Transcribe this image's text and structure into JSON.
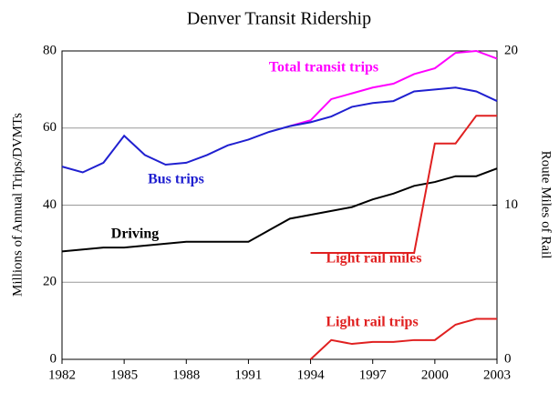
{
  "chart_data": {
    "type": "line",
    "title": "Denver Transit Ridership",
    "y_label": "Millions of Annual Trips/DVMTs",
    "y2_label": "Route Miles of Rail",
    "xlim": [
      1982,
      2003
    ],
    "xticks": [
      1982,
      1985,
      1988,
      1991,
      1994,
      1997,
      2000,
      2003
    ],
    "ylim": [
      0,
      80
    ],
    "yticks": [
      0,
      20,
      40,
      60,
      80
    ],
    "y2lim": [
      0,
      20
    ],
    "y2ticks": [
      0,
      10,
      20
    ],
    "grid": true,
    "series": [
      {
        "name": "Total transit trips",
        "color": "#ff00ff",
        "x": [
          1993,
          1994,
          1995,
          1996,
          1997,
          1998,
          1999,
          2000,
          2001,
          2002,
          2003
        ],
        "values": [
          60.5,
          62,
          67.5,
          69,
          70.5,
          71.5,
          74,
          75.5,
          79.5,
          80,
          78
        ]
      },
      {
        "name": "Bus trips",
        "color": "#2020d0",
        "x": [
          1982,
          1983,
          1984,
          1985,
          1986,
          1987,
          1988,
          1989,
          1990,
          1991,
          1992,
          1993,
          1994,
          1995,
          1996,
          1997,
          1998,
          1999,
          2000,
          2001,
          2002,
          2003
        ],
        "values": [
          50,
          48.5,
          51,
          58,
          53,
          50.5,
          51,
          53,
          55.5,
          57,
          59,
          60.5,
          61.5,
          63,
          65.5,
          66.5,
          67,
          69.5,
          70,
          70.5,
          69.5,
          67
        ]
      },
      {
        "name": "Driving",
        "color": "#000000",
        "x": [
          1982,
          1983,
          1984,
          1985,
          1986,
          1987,
          1988,
          1989,
          1990,
          1991,
          1992,
          1993,
          1994,
          1995,
          1996,
          1997,
          1998,
          1999,
          2000,
          2001,
          2002,
          2003
        ],
        "values": [
          28,
          28.5,
          29,
          29,
          29.5,
          30,
          30.5,
          30.5,
          30.5,
          30.5,
          33.5,
          36.5,
          37.5,
          38.5,
          39.5,
          41.5,
          43,
          45,
          46,
          47.5,
          47.5,
          49.5
        ]
      },
      {
        "name": "Light rail miles",
        "color": "#e02020",
        "axis": "y2",
        "x": [
          1994,
          1999,
          2000,
          2001,
          2002,
          2003
        ],
        "values": [
          6.9,
          6.9,
          14,
          14,
          15.8,
          15.8
        ]
      },
      {
        "name": "Light rail trips",
        "color": "#e02020",
        "x": [
          1994,
          1995,
          1996,
          1997,
          1998,
          1999,
          2000,
          2001,
          2002,
          2003
        ],
        "values": [
          0,
          5,
          4,
          4.5,
          4.5,
          5,
          5,
          9,
          10.5,
          10.5
        ]
      }
    ]
  }
}
